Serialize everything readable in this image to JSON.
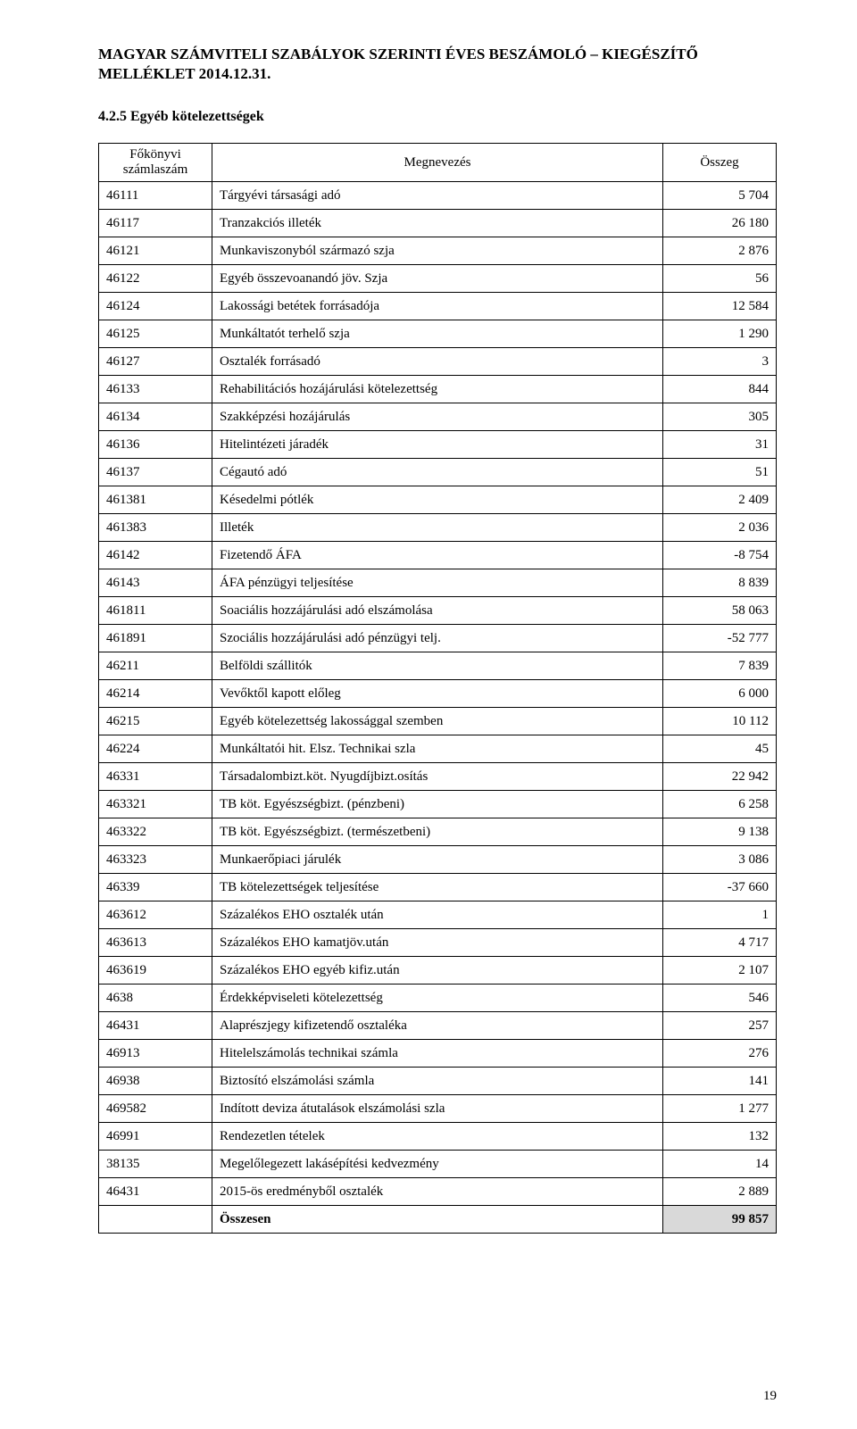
{
  "header": {
    "line": "MAGYAR SZÁMVITELI SZABÁLYOK SZERINTI ÉVES BESZÁMOLÓ – KIEGÉSZÍTŐ MELLÉKLET 2014.12.31."
  },
  "section": {
    "title": "4.2.5 Egyéb kötelezettségek"
  },
  "table": {
    "columns": {
      "account": "Főkönyvi számlaszám",
      "name": "Megnevezés",
      "amount": "Összeg"
    },
    "rows": [
      {
        "account": "46111",
        "name": "Tárgyévi társasági adó",
        "amount": "5 704"
      },
      {
        "account": "46117",
        "name": "Tranzakciós illeték",
        "amount": "26 180"
      },
      {
        "account": "46121",
        "name": "Munkaviszonyból származó szja",
        "amount": "2 876"
      },
      {
        "account": "46122",
        "name": "Egyéb összevoanandó jöv. Szja",
        "amount": "56"
      },
      {
        "account": "46124",
        "name": "Lakossági betétek forrásadója",
        "amount": "12 584"
      },
      {
        "account": "46125",
        "name": "Munkáltatót terhelő szja",
        "amount": "1 290"
      },
      {
        "account": "46127",
        "name": "Osztalék forrásadó",
        "amount": "3"
      },
      {
        "account": "46133",
        "name": "Rehabilitációs hozájárulási kötelezettség",
        "amount": "844"
      },
      {
        "account": "46134",
        "name": "Szakképzési hozájárulás",
        "amount": "305"
      },
      {
        "account": "46136",
        "name": "Hitelintézeti járadék",
        "amount": "31"
      },
      {
        "account": "46137",
        "name": "Cégautó adó",
        "amount": "51"
      },
      {
        "account": "461381",
        "name": "Késedelmi pótlék",
        "amount": "2 409"
      },
      {
        "account": "461383",
        "name": "Illeték",
        "amount": "2 036"
      },
      {
        "account": "46142",
        "name": "Fizetendő ÁFA",
        "amount": "-8 754"
      },
      {
        "account": "46143",
        "name": "ÁFA pénzügyi teljesítése",
        "amount": "8 839"
      },
      {
        "account": "461811",
        "name": "Soaciális hozzájárulási adó elszámolása",
        "amount": "58 063"
      },
      {
        "account": "461891",
        "name": "Szociális hozzájárulási adó pénzügyi telj.",
        "amount": "-52 777"
      },
      {
        "account": "46211",
        "name": "Belföldi szállitók",
        "amount": "7 839"
      },
      {
        "account": "46214",
        "name": "Vevőktől kapott előleg",
        "amount": "6 000"
      },
      {
        "account": "46215",
        "name": "Egyéb kötelezettség lakossággal szemben",
        "amount": "10 112"
      },
      {
        "account": "46224",
        "name": "Munkáltatói hit. Elsz. Technikai szla",
        "amount": "45"
      },
      {
        "account": "46331",
        "name": "Társadalombizt.köt. Nyugdíjbizt.osítás",
        "amount": "22 942"
      },
      {
        "account": "463321",
        "name": "TB köt. Egyészségbizt. (pénzbeni)",
        "amount": "6 258"
      },
      {
        "account": "463322",
        "name": "TB köt. Egyészségbizt. (természetbeni)",
        "amount": "9 138"
      },
      {
        "account": "463323",
        "name": "Munkaerőpiaci járulék",
        "amount": "3 086"
      },
      {
        "account": "46339",
        "name": "TB kötelezettségek teljesítése",
        "amount": "-37 660"
      },
      {
        "account": "463612",
        "name": "Százalékos EHO osztalék után",
        "amount": "1"
      },
      {
        "account": "463613",
        "name": "Százalékos EHO kamatjöv.után",
        "amount": "4 717"
      },
      {
        "account": "463619",
        "name": "Százalékos EHO egyéb kifiz.után",
        "amount": "2 107"
      },
      {
        "account": "4638",
        "name": "Érdekképviseleti kötelezettség",
        "amount": "546"
      },
      {
        "account": "46431",
        "name": "Alaprészjegy kifizetendő osztaléka",
        "amount": "257"
      },
      {
        "account": "46913",
        "name": "Hitelelszámolás technikai számla",
        "amount": "276"
      },
      {
        "account": "46938",
        "name": "Biztosító elszámolási számla",
        "amount": "141"
      },
      {
        "account": "469582",
        "name": "Indított deviza átutalások elszámolási szla",
        "amount": "1 277"
      },
      {
        "account": "46991",
        "name": "Rendezetlen tételek",
        "amount": "132"
      },
      {
        "account": "38135",
        "name": "Megelőlegezett lakásépítési kedvezmény",
        "amount": "14"
      },
      {
        "account": "46431",
        "name": "2015-ös eredményből osztalék",
        "amount": "2 889"
      }
    ],
    "total": {
      "account": "",
      "name": "Összesen",
      "amount": "99 857"
    }
  },
  "footer": {
    "page": "19"
  }
}
